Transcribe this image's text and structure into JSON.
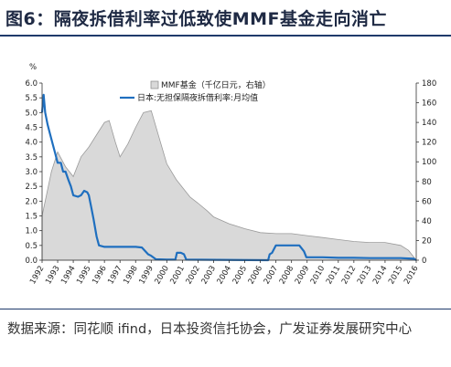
{
  "title": "图6：隔夜拆借利率过低致使MMF基金走向消亡",
  "source": "数据来源：同花顺 ifind，日本投资信托协会，广发证券发展研究中心",
  "chart_data": {
    "type": "area+line",
    "left_axis": {
      "unit_label": "%",
      "range": [
        0,
        6
      ],
      "ticks": [
        "0.0",
        "0.5",
        "1.0",
        "1.5",
        "2.0",
        "2.5",
        "3.0",
        "3.5",
        "4.0",
        "4.5",
        "5.0",
        "5.5",
        "6.0"
      ]
    },
    "right_axis": {
      "range": [
        0,
        180
      ],
      "ticks": [
        "0",
        "20",
        "40",
        "60",
        "80",
        "100",
        "120",
        "140",
        "160",
        "180"
      ]
    },
    "x_axis": {
      "range": [
        1992,
        2016
      ],
      "ticks": [
        "1992",
        "1993",
        "1994",
        "1995",
        "1996",
        "1997",
        "1998",
        "1999",
        "2000",
        "2001",
        "2002",
        "2003",
        "2004",
        "2005",
        "2006",
        "2007",
        "2008",
        "2009",
        "2010",
        "2011",
        "2012",
        "2013",
        "2014",
        "2015",
        "2016"
      ]
    },
    "legend": [
      "MMF基金（千亿日元，右轴）",
      "日本:无担保隔夜拆借利率:月均值"
    ],
    "series": [
      {
        "name": "MMF基金（千亿日元，右轴）",
        "axis": "right",
        "style": "area",
        "color": "#d9d9d9",
        "points": [
          [
            1992.0,
            45
          ],
          [
            1992.6,
            90
          ],
          [
            1993.0,
            110
          ],
          [
            1993.5,
            95
          ],
          [
            1994.0,
            85
          ],
          [
            1994.5,
            105
          ],
          [
            1995.0,
            115
          ],
          [
            1995.6,
            130
          ],
          [
            1996.0,
            140
          ],
          [
            1996.3,
            142
          ],
          [
            1996.7,
            120
          ],
          [
            1997.0,
            105
          ],
          [
            1997.5,
            118
          ],
          [
            1998.0,
            135
          ],
          [
            1998.5,
            150
          ],
          [
            1999.0,
            152
          ],
          [
            1999.5,
            125
          ],
          [
            2000.0,
            98
          ],
          [
            2000.6,
            82
          ],
          [
            2001.0,
            74
          ],
          [
            2001.5,
            64
          ],
          [
            2002.0,
            58
          ],
          [
            2002.6,
            50
          ],
          [
            2003.0,
            44
          ],
          [
            2004.0,
            37
          ],
          [
            2005.0,
            32
          ],
          [
            2006.0,
            28
          ],
          [
            2007.0,
            27
          ],
          [
            2008.0,
            27
          ],
          [
            2009.0,
            25
          ],
          [
            2010.0,
            23
          ],
          [
            2011.0,
            21
          ],
          [
            2012.0,
            19
          ],
          [
            2013.0,
            18
          ],
          [
            2014.0,
            18
          ],
          [
            2015.0,
            15
          ],
          [
            2015.5,
            10
          ],
          [
            2016.0,
            0
          ]
        ]
      },
      {
        "name": "日本:无担保隔夜拆借利率:月均值",
        "axis": "left",
        "style": "line",
        "color": "#1f6fbf",
        "points": [
          [
            1992.0,
            5.0
          ],
          [
            1992.1,
            5.6
          ],
          [
            1992.2,
            5.0
          ],
          [
            1992.35,
            4.6
          ],
          [
            1992.5,
            4.3
          ],
          [
            1992.7,
            3.9
          ],
          [
            1992.85,
            3.6
          ],
          [
            1993.0,
            3.3
          ],
          [
            1993.2,
            3.3
          ],
          [
            1993.35,
            3.0
          ],
          [
            1993.5,
            3.0
          ],
          [
            1993.7,
            2.7
          ],
          [
            1993.85,
            2.5
          ],
          [
            1994.0,
            2.2
          ],
          [
            1994.3,
            2.15
          ],
          [
            1994.5,
            2.2
          ],
          [
            1994.7,
            2.35
          ],
          [
            1994.9,
            2.3
          ],
          [
            1995.0,
            2.2
          ],
          [
            1995.15,
            1.8
          ],
          [
            1995.3,
            1.4
          ],
          [
            1995.5,
            0.8
          ],
          [
            1995.65,
            0.5
          ],
          [
            1996.0,
            0.45
          ],
          [
            1997.0,
            0.45
          ],
          [
            1998.0,
            0.45
          ],
          [
            1998.4,
            0.43
          ],
          [
            1998.8,
            0.2
          ],
          [
            1999.0,
            0.15
          ],
          [
            1999.3,
            0.03
          ],
          [
            2000.0,
            0.02
          ],
          [
            2000.55,
            0.02
          ],
          [
            2000.65,
            0.25
          ],
          [
            2000.9,
            0.25
          ],
          [
            2001.1,
            0.2
          ],
          [
            2001.25,
            0.02
          ],
          [
            2006.5,
            0.0
          ],
          [
            2006.6,
            0.2
          ],
          [
            2006.75,
            0.25
          ],
          [
            2007.0,
            0.5
          ],
          [
            2007.5,
            0.5
          ],
          [
            2008.0,
            0.5
          ],
          [
            2008.5,
            0.5
          ],
          [
            2008.8,
            0.3
          ],
          [
            2008.95,
            0.1
          ],
          [
            2009.0,
            0.1
          ],
          [
            2010.0,
            0.1
          ],
          [
            2011.0,
            0.08
          ],
          [
            2012.0,
            0.08
          ],
          [
            2013.0,
            0.07
          ],
          [
            2014.0,
            0.07
          ],
          [
            2015.0,
            0.07
          ],
          [
            2015.5,
            0.06
          ],
          [
            2015.85,
            0.05
          ],
          [
            2016.0,
            0.0
          ]
        ]
      }
    ]
  }
}
